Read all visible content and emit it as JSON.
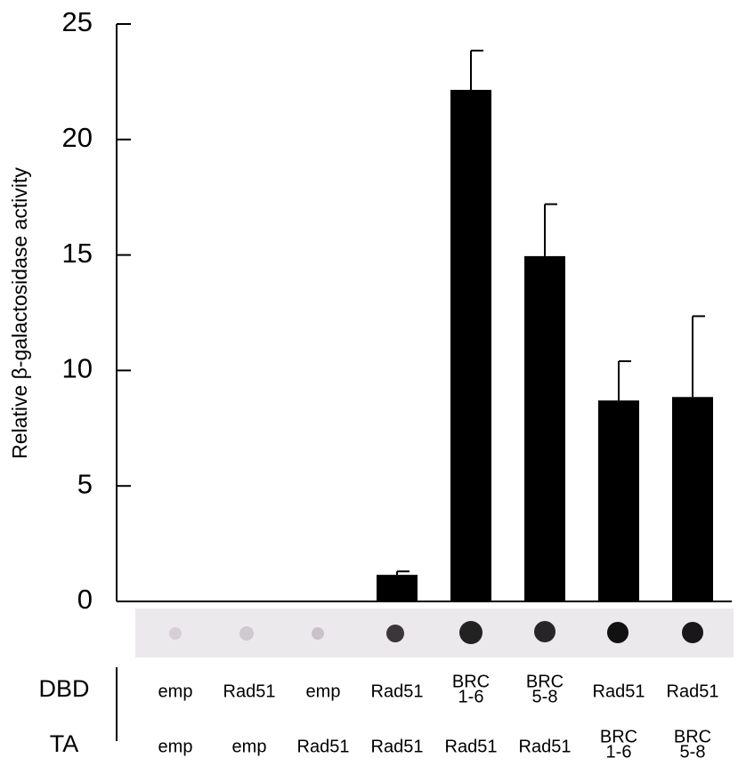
{
  "chart_data": {
    "type": "bar",
    "y_label": "Relative β-galactosidase activity",
    "values": [
      0,
      0,
      0,
      1.15,
      22.15,
      14.95,
      8.7,
      8.85
    ],
    "errors": [
      0,
      0,
      0,
      0.15,
      1.7,
      2.25,
      1.7,
      3.5
    ],
    "color": "#000000",
    "ylim": [
      0,
      25
    ],
    "yticks": [
      0,
      5,
      10,
      15,
      20,
      25
    ]
  },
  "table": {
    "rows": [
      {
        "label": "DBD",
        "cells": [
          [
            "emp"
          ],
          [
            "Rad51"
          ],
          [
            "emp"
          ],
          [
            "Rad51"
          ],
          [
            "BRC",
            "1-6"
          ],
          [
            "BRC",
            "5-8"
          ],
          [
            "Rad51"
          ],
          [
            "Rad51"
          ]
        ]
      },
      {
        "label": "TA",
        "cells": [
          [
            "emp"
          ],
          [
            "emp"
          ],
          [
            "Rad51"
          ],
          [
            "Rad51"
          ],
          [
            "Rad51"
          ],
          [
            "Rad51"
          ],
          [
            "BRC",
            "1-6"
          ],
          [
            "BRC",
            "5-8"
          ]
        ]
      }
    ]
  }
}
